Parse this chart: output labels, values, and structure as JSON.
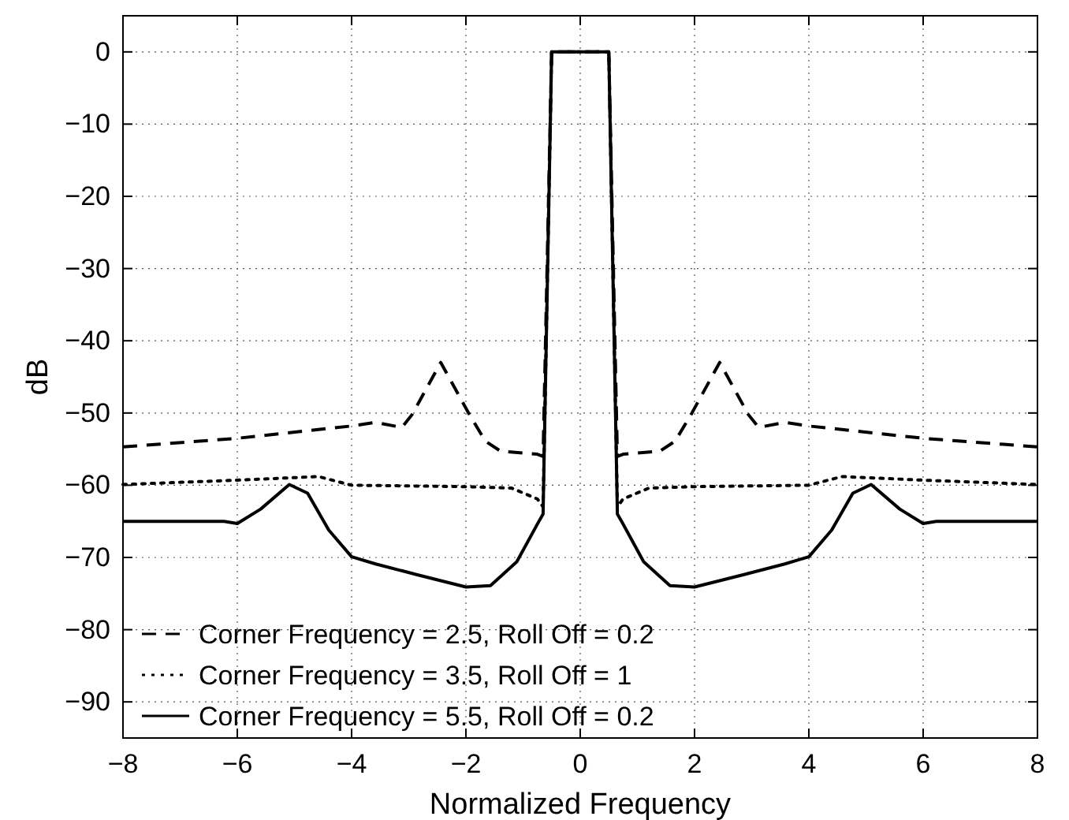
{
  "chart_data": {
    "type": "line",
    "xlabel": "Normalized Frequency",
    "ylabel": "dB",
    "xlim": [
      -8,
      8
    ],
    "ylim": [
      -95,
      5
    ],
    "xticks": [
      -8,
      -6,
      -4,
      -2,
      0,
      2,
      4,
      6,
      8
    ],
    "yticks": [
      -90,
      -80,
      -70,
      -60,
      -50,
      -40,
      -30,
      -20,
      -10,
      0
    ],
    "grid": true,
    "legend": "bottom left",
    "series": [
      {
        "name": "Corner Frequency = 2.5, Roll Off = 0.2",
        "color": "#000000",
        "line_style": "dashed",
        "x": [
          -8,
          -6,
          -4,
          -3.58,
          -3.12,
          -2.94,
          -2.44,
          -1.94,
          -1.66,
          -1.39,
          -0.75,
          -0.65,
          -0.5,
          0.5,
          0.65,
          0.75,
          1.39,
          1.66,
          1.94,
          2.44,
          2.94,
          3.12,
          3.58,
          4,
          6,
          8
        ],
        "values": [
          -54.7,
          -53.5,
          -51.8,
          -51.3,
          -52,
          -50.2,
          -43,
          -50.2,
          -53.9,
          -55.3,
          -55.7,
          -56,
          0,
          0,
          -56,
          -55.7,
          -55.3,
          -53.9,
          -50.2,
          -43,
          -50.2,
          -52,
          -51.3,
          -51.8,
          -53.5,
          -54.7
        ]
      },
      {
        "name": "Corner Frequency = 3.5, Roll Off = 1",
        "color": "#000000",
        "line_style": "dotted",
        "x": [
          -8,
          -6,
          -4.58,
          -4,
          -2,
          -1.2,
          -0.75,
          -0.65,
          -0.5,
          0.5,
          0.65,
          0.75,
          1.2,
          2,
          4,
          4.58,
          6,
          8
        ],
        "values": [
          -59.9,
          -59.3,
          -58.8,
          -60,
          -60.2,
          -60.4,
          -61.9,
          -63,
          0,
          0,
          -63,
          -61.9,
          -60.4,
          -60.2,
          -60,
          -58.8,
          -59.3,
          -59.9
        ]
      },
      {
        "name": "Corner Frequency = 5.5, Roll Off = 0.2",
        "color": "#000000",
        "line_style": "solid",
        "x": [
          -8,
          -6.23,
          -6,
          -5.59,
          -5.09,
          -4.77,
          -4.4,
          -4,
          -3.58,
          -2.85,
          -2,
          -1.57,
          -1.11,
          -0.73,
          -0.65,
          -0.5,
          0.5,
          0.65,
          0.73,
          1.11,
          1.57,
          2,
          2.85,
          3.58,
          4,
          4.4,
          4.77,
          5.09,
          5.59,
          6,
          6.23,
          8
        ],
        "values": [
          -65,
          -65,
          -65.3,
          -63.3,
          -59.9,
          -61.1,
          -66.2,
          -69.9,
          -70.9,
          -72.4,
          -74.1,
          -73.9,
          -70.6,
          -65.1,
          -64,
          0,
          0,
          -64,
          -65.1,
          -70.6,
          -73.9,
          -74.1,
          -72.4,
          -70.9,
          -69.9,
          -66.2,
          -61.1,
          -59.9,
          -63.3,
          -65.3,
          -65,
          -65
        ]
      }
    ]
  }
}
